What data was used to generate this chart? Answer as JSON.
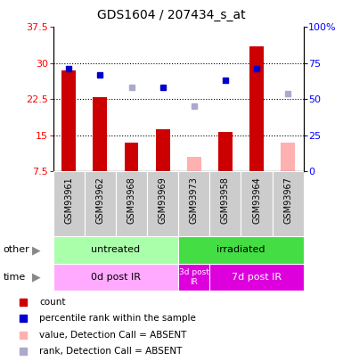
{
  "title": "GDS1604 / 207434_s_at",
  "samples": [
    "GSM93961",
    "GSM93962",
    "GSM93968",
    "GSM93969",
    "GSM93973",
    "GSM93958",
    "GSM93964",
    "GSM93967"
  ],
  "bar_values": [
    28.5,
    23.0,
    13.5,
    16.2,
    null,
    15.7,
    33.5,
    null
  ],
  "bar_values_absent": [
    null,
    null,
    null,
    null,
    10.5,
    null,
    null,
    13.5
  ],
  "rank_values": [
    71,
    67,
    null,
    58,
    null,
    63,
    71,
    null
  ],
  "rank_values_absent": [
    null,
    null,
    58,
    null,
    45,
    null,
    null,
    54
  ],
  "bar_color": "#cc0000",
  "bar_color_absent": "#ffb0b0",
  "rank_color": "#0000cc",
  "rank_color_absent": "#aaaacc",
  "ylim_left": [
    7.5,
    37.5
  ],
  "ylim_right": [
    0,
    100
  ],
  "yticks_left": [
    7.5,
    15.0,
    22.5,
    30.0,
    37.5
  ],
  "yticks_right": [
    0,
    25,
    50,
    75,
    100
  ],
  "ytick_labels_left": [
    "7.5",
    "15",
    "22.5",
    "30",
    "37.5"
  ],
  "ytick_labels_right": [
    "0",
    "25",
    "50",
    "75",
    "100%"
  ],
  "group_other": [
    {
      "label": "untreated",
      "start": 0,
      "end": 4,
      "color": "#aaffaa"
    },
    {
      "label": "irradiated",
      "start": 4,
      "end": 8,
      "color": "#44dd44"
    }
  ],
  "group_time": [
    {
      "label": "0d post IR",
      "start": 0,
      "end": 4,
      "color": "#ffaaff"
    },
    {
      "label": "3d post\nIR",
      "start": 4,
      "end": 5,
      "color": "#dd00dd"
    },
    {
      "label": "7d post IR",
      "start": 5,
      "end": 8,
      "color": "#dd00dd"
    }
  ],
  "legend_items": [
    {
      "label": "count",
      "color": "#cc0000"
    },
    {
      "label": "percentile rank within the sample",
      "color": "#0000cc"
    },
    {
      "label": "value, Detection Call = ABSENT",
      "color": "#ffb0b0"
    },
    {
      "label": "rank, Detection Call = ABSENT",
      "color": "#aaaacc"
    }
  ],
  "bg_color": "#ffffff",
  "bar_width": 0.45,
  "sample_bg": "#cccccc"
}
